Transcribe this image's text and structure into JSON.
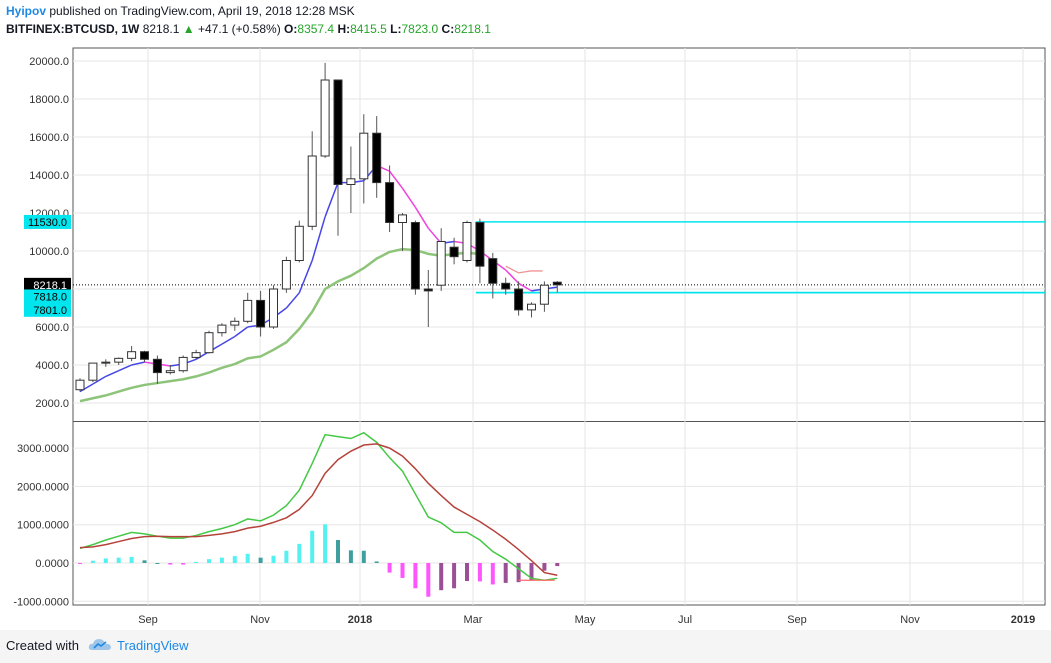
{
  "header": {
    "author": "Hyipov",
    "published_text": "published on TradingView.com, April 19, 2018 12:28 MSK",
    "symbol": "BITFINEX:BTCUSD, 1W",
    "last": "8218.1",
    "change_arrow": "▲",
    "change": "+47.1 (+0.58%)",
    "o_label": "O:",
    "o_value": "8357.4",
    "h_label": "H:",
    "h_value": "8415.5",
    "l_label": "L:",
    "l_value": "7823.0",
    "c_label": "C:",
    "c_value": "8218.1"
  },
  "footer": {
    "created_with": "Created with",
    "brand": "TradingView",
    "logo_icon": "tradingview-cloud-icon"
  },
  "colors": {
    "up_candle_fill": "#ffffff",
    "down_candle_fill": "#000000",
    "ema_short": "#4646e6",
    "ema_short_alt": "#ee44dd",
    "ema_fast_future": "#e97b7b",
    "sma_long": "#8ec47a",
    "level_line": "#00e5ee",
    "price_tag": "#000000",
    "macd_line": "#45c845",
    "signal_line": "#b5433b",
    "hist_pos": "#55f0f0",
    "hist_pos_fading": "#3e9f9f",
    "hist_neg": "#ff55ff",
    "hist_neg_fading": "#9b4f95"
  },
  "chart_data": [
    {
      "type": "candlestick",
      "title": "BITFINEX:BTCUSD, 1W",
      "x_tick_labels": [
        "Sep",
        "Nov",
        "2018",
        "Mar",
        "May",
        "Jul",
        "Sep",
        "Nov",
        "2019"
      ],
      "y_tick_labels": [
        "2000.0",
        "4000.0",
        "6000.0",
        "8000.0",
        "10000.0",
        "12000.0",
        "14000.0",
        "16000.0",
        "18000.0",
        "20000.0"
      ],
      "ylim": [
        1000,
        21000
      ],
      "grid": true,
      "price_labels": [
        {
          "label": "11530.0",
          "value": 11530,
          "color": "#00e5ee"
        },
        {
          "label": "8218.1",
          "value": 8218.1,
          "color": "#000000"
        },
        {
          "label": "7818.0",
          "value": 7818,
          "color": "#00e5ee"
        },
        {
          "label": "7801.0",
          "value": 7801,
          "color": "#00e5ee"
        }
      ],
      "horizontal_levels": [
        {
          "value": 11530,
          "start_week_index": 31
        },
        {
          "value": 7818,
          "start_week_index": 31
        },
        {
          "value": 7801,
          "start_week_index": 31
        }
      ],
      "last_price_dotted": 8218.1,
      "candles": [
        [
          2700,
          3300,
          2600,
          3200
        ],
        [
          3200,
          4100,
          3100,
          4100
        ],
        [
          4100,
          4300,
          3900,
          4150
        ],
        [
          4150,
          4400,
          4000,
          4350
        ],
        [
          4350,
          5000,
          4200,
          4700
        ],
        [
          4700,
          4750,
          4150,
          4300
        ],
        [
          4300,
          4500,
          3000,
          3600
        ],
        [
          3600,
          4000,
          3500,
          3700
        ],
        [
          3700,
          4500,
          3600,
          4400
        ],
        [
          4400,
          4800,
          4300,
          4650
        ],
        [
          4650,
          5800,
          4600,
          5700
        ],
        [
          5700,
          6200,
          5500,
          6100
        ],
        [
          6100,
          6500,
          5800,
          6300
        ],
        [
          6300,
          7800,
          6200,
          7400
        ],
        [
          7400,
          7900,
          5500,
          6000
        ],
        [
          6000,
          8200,
          5900,
          8000
        ],
        [
          8000,
          9700,
          7800,
          9500
        ],
        [
          9500,
          11600,
          9400,
          11300
        ],
        [
          11300,
          16300,
          11100,
          15000
        ],
        [
          15000,
          19900,
          14900,
          19000
        ],
        [
          19000,
          19000,
          10800,
          13500
        ],
        [
          13500,
          15500,
          12000,
          13800
        ],
        [
          13800,
          17200,
          12500,
          16200
        ],
        [
          16200,
          17100,
          12800,
          13600
        ],
        [
          13600,
          14500,
          11000,
          11500
        ],
        [
          11500,
          12000,
          10000,
          11900
        ],
        [
          11500,
          11600,
          7700,
          8000
        ],
        [
          8000,
          9000,
          6000,
          7900
        ],
        [
          8200,
          11200,
          7900,
          10500
        ],
        [
          10200,
          10700,
          9300,
          9700
        ],
        [
          9500,
          11600,
          9400,
          11500
        ],
        [
          11500,
          11700,
          8300,
          9200
        ],
        [
          9600,
          9900,
          7500,
          8300
        ],
        [
          8300,
          8600,
          7700,
          8000
        ],
        [
          8000,
          8400,
          6600,
          6900
        ],
        [
          6900,
          7300,
          6500,
          7200
        ],
        [
          7200,
          8400,
          6800,
          8200
        ],
        [
          8357.4,
          8415.5,
          7823,
          8218.1
        ]
      ],
      "ema_short": [
        2600,
        3000,
        3400,
        3700,
        4000,
        4150,
        4050,
        3950,
        4050,
        4300,
        4700,
        5100,
        5500,
        6000,
        6100,
        6500,
        7000,
        7800,
        9500,
        11800,
        13600,
        13600,
        13700,
        14500,
        14200,
        13300,
        12300,
        11200,
        10400,
        10500,
        10400,
        10000,
        9500,
        9000,
        8300,
        7900,
        8000,
        8100
      ],
      "ema_short_future": [
        8850,
        8950,
        8950
      ],
      "sma_long": [
        2100,
        2250,
        2400,
        2600,
        2800,
        2950,
        3050,
        3150,
        3250,
        3400,
        3600,
        3850,
        4050,
        4350,
        4450,
        4800,
        5200,
        5900,
        6800,
        8000,
        8400,
        8700,
        9100,
        9600,
        9950,
        10100,
        10050,
        9850,
        9750,
        9850,
        9900,
        9850
      ]
    },
    {
      "type": "macd",
      "y_tick_labels": [
        "-1000.0000",
        "0.0000",
        "1000.0000",
        "2000.0000",
        "3000.0000"
      ],
      "ylim": [
        -1000,
        3600
      ],
      "macd": [
        380,
        480,
        600,
        700,
        800,
        760,
        700,
        650,
        650,
        720,
        820,
        900,
        1000,
        1150,
        1100,
        1250,
        1500,
        1900,
        2600,
        3350,
        3300,
        3250,
        3400,
        3150,
        2750,
        2400,
        1800,
        1200,
        1050,
        800,
        800,
        600,
        300,
        100,
        -150,
        -400,
        -450,
        -400
      ],
      "signal": [
        400,
        420,
        480,
        560,
        640,
        690,
        700,
        690,
        690,
        690,
        720,
        760,
        820,
        910,
        960,
        1060,
        1180,
        1400,
        1760,
        2340,
        2700,
        2920,
        3080,
        3110,
        3000,
        2790,
        2460,
        2080,
        1760,
        1460,
        1270,
        1080,
        860,
        620,
        350,
        60,
        -250,
        -320
      ],
      "hist_positive_last_index": 22,
      "signal_tail": [
        -450,
        -450,
        -450,
        -450
      ]
    }
  ]
}
